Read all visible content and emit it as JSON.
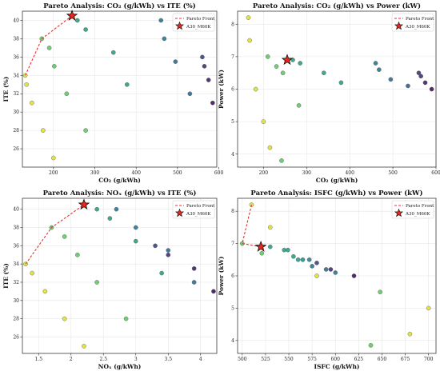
{
  "colors": {
    "front_line": "#e0342f",
    "star_fill": "#e8261c",
    "grid": "#e6e6e6",
    "palette_viridis": [
      "#440154",
      "#3b528b",
      "#21918c",
      "#5ec962",
      "#fde725"
    ]
  },
  "chart_data": [
    {
      "type": "scatter",
      "title": "Pareto Analysis: CO₂ (g/kWh) vs ITE (%)",
      "xlabel": "CO₂ (g/kWh)",
      "ylabel": "ITE (%)",
      "xlim": [
        125,
        595
      ],
      "ylim": [
        24,
        41
      ],
      "xticks": [
        200,
        300,
        400,
        500,
        600
      ],
      "yticks": [
        26,
        28,
        30,
        32,
        34,
        36,
        38,
        40
      ],
      "grid": true,
      "legend": {
        "position": "top-right",
        "entries": [
          "Pareto Front",
          "A30_M60K"
        ]
      },
      "points": [
        {
          "x": 132,
          "y": 34,
          "c": 0.95
        },
        {
          "x": 135,
          "y": 33,
          "c": 0.95
        },
        {
          "x": 148,
          "y": 31,
          "c": 0.95
        },
        {
          "x": 175,
          "y": 28,
          "c": 0.95
        },
        {
          "x": 200,
          "y": 25,
          "c": 0.95
        },
        {
          "x": 172,
          "y": 38,
          "c": 0.75
        },
        {
          "x": 190,
          "y": 37,
          "c": 0.75
        },
        {
          "x": 202,
          "y": 35,
          "c": 0.75
        },
        {
          "x": 232,
          "y": 32,
          "c": 0.75
        },
        {
          "x": 278,
          "y": 28,
          "c": 0.75
        },
        {
          "x": 258,
          "y": 40,
          "c": 0.55
        },
        {
          "x": 278,
          "y": 39,
          "c": 0.55
        },
        {
          "x": 345,
          "y": 36.5,
          "c": 0.55
        },
        {
          "x": 378,
          "y": 33,
          "c": 0.55
        },
        {
          "x": 460,
          "y": 40,
          "c": 0.4
        },
        {
          "x": 468,
          "y": 38,
          "c": 0.4
        },
        {
          "x": 495,
          "y": 35.5,
          "c": 0.35
        },
        {
          "x": 530,
          "y": 32,
          "c": 0.35
        },
        {
          "x": 560,
          "y": 36,
          "c": 0.2
        },
        {
          "x": 565,
          "y": 35,
          "c": 0.15
        },
        {
          "x": 575,
          "y": 33.5,
          "c": 0.1
        },
        {
          "x": 585,
          "y": 31,
          "c": 0.05
        }
      ],
      "front": [
        {
          "x": 132,
          "y": 34
        },
        {
          "x": 172,
          "y": 38
        },
        {
          "x": 245,
          "y": 40.5
        }
      ],
      "star": {
        "x": 245,
        "y": 40.5
      }
    },
    {
      "type": "scatter",
      "title": "Pareto Analysis: CO₂ (g/kWh) vs Power (kW)",
      "xlabel": "CO₂ (g/kWh)",
      "ylabel": "Power (kW)",
      "xlim": [
        140,
        600
      ],
      "ylim": [
        3.6,
        8.4
      ],
      "xticks": [
        200,
        300,
        400,
        500,
        600
      ],
      "yticks": [
        4,
        5,
        6,
        7,
        8
      ],
      "grid": true,
      "legend": {
        "position": "top-right",
        "entries": [
          "Pareto Front",
          "A30_M60K"
        ]
      },
      "points": [
        {
          "x": 165,
          "y": 8.2,
          "c": 0.95
        },
        {
          "x": 168,
          "y": 7.5,
          "c": 0.95
        },
        {
          "x": 182,
          "y": 6.0,
          "c": 0.95
        },
        {
          "x": 200,
          "y": 5.0,
          "c": 0.95
        },
        {
          "x": 215,
          "y": 4.2,
          "c": 0.95
        },
        {
          "x": 210,
          "y": 7.0,
          "c": 0.75
        },
        {
          "x": 230,
          "y": 6.7,
          "c": 0.75
        },
        {
          "x": 245,
          "y": 6.5,
          "c": 0.75
        },
        {
          "x": 282,
          "y": 5.5,
          "c": 0.75
        },
        {
          "x": 242,
          "y": 3.8,
          "c": 0.75
        },
        {
          "x": 268,
          "y": 6.9,
          "c": 0.55
        },
        {
          "x": 285,
          "y": 6.8,
          "c": 0.55
        },
        {
          "x": 340,
          "y": 6.5,
          "c": 0.55
        },
        {
          "x": 380,
          "y": 6.2,
          "c": 0.55
        },
        {
          "x": 460,
          "y": 6.8,
          "c": 0.4
        },
        {
          "x": 468,
          "y": 6.6,
          "c": 0.4
        },
        {
          "x": 495,
          "y": 6.3,
          "c": 0.35
        },
        {
          "x": 535,
          "y": 6.1,
          "c": 0.3
        },
        {
          "x": 560,
          "y": 6.5,
          "c": 0.15
        },
        {
          "x": 565,
          "y": 6.4,
          "c": 0.15
        },
        {
          "x": 575,
          "y": 6.2,
          "c": 0.1
        },
        {
          "x": 590,
          "y": 6.0,
          "c": 0.05
        }
      ],
      "front": [],
      "star": {
        "x": 255,
        "y": 6.9
      }
    },
    {
      "type": "scatter",
      "title": "Pareto Analysis: NOₓ (g/kWh) vs ITE (%)",
      "xlabel": "NOₓ (g/kWh)",
      "ylabel": "ITE (%)",
      "xlim": [
        1.25,
        4.25
      ],
      "ylim": [
        24.2,
        41.2
      ],
      "xticks": [
        1.5,
        2.0,
        2.5,
        3.0,
        3.5,
        4.0
      ],
      "yticks": [
        26,
        28,
        30,
        32,
        34,
        36,
        38,
        40
      ],
      "grid": true,
      "legend": {
        "position": "top-right",
        "entries": [
          "Pareto Front",
          "A30_M60K"
        ]
      },
      "points": [
        {
          "x": 1.3,
          "y": 34,
          "c": 0.95
        },
        {
          "x": 1.4,
          "y": 33,
          "c": 0.95
        },
        {
          "x": 1.6,
          "y": 31,
          "c": 0.95
        },
        {
          "x": 1.9,
          "y": 28,
          "c": 0.95
        },
        {
          "x": 2.2,
          "y": 25,
          "c": 0.95
        },
        {
          "x": 1.7,
          "y": 38,
          "c": 0.75
        },
        {
          "x": 1.9,
          "y": 37,
          "c": 0.75
        },
        {
          "x": 2.1,
          "y": 35,
          "c": 0.75
        },
        {
          "x": 2.4,
          "y": 32,
          "c": 0.75
        },
        {
          "x": 2.85,
          "y": 28,
          "c": 0.75
        },
        {
          "x": 2.4,
          "y": 40,
          "c": 0.55
        },
        {
          "x": 2.6,
          "y": 39,
          "c": 0.55
        },
        {
          "x": 3.0,
          "y": 36.5,
          "c": 0.55
        },
        {
          "x": 3.4,
          "y": 33,
          "c": 0.55
        },
        {
          "x": 2.7,
          "y": 40,
          "c": 0.4
        },
        {
          "x": 3.0,
          "y": 38,
          "c": 0.4
        },
        {
          "x": 3.5,
          "y": 35.5,
          "c": 0.35
        },
        {
          "x": 3.9,
          "y": 32,
          "c": 0.35
        },
        {
          "x": 3.3,
          "y": 36,
          "c": 0.2
        },
        {
          "x": 3.5,
          "y": 35,
          "c": 0.15
        },
        {
          "x": 3.9,
          "y": 33.5,
          "c": 0.1
        },
        {
          "x": 4.2,
          "y": 31,
          "c": 0.05
        }
      ],
      "front": [
        {
          "x": 1.3,
          "y": 34
        },
        {
          "x": 1.7,
          "y": 38
        },
        {
          "x": 2.2,
          "y": 40.5
        }
      ],
      "star": {
        "x": 2.2,
        "y": 40.5
      }
    },
    {
      "type": "scatter",
      "title": "Pareto Analysis: ISFC (g/kWh) vs Power (kW)",
      "xlabel": "ISFC (g/kWh)",
      "ylabel": "Power (kW)",
      "xlim": [
        495,
        708
      ],
      "ylim": [
        3.6,
        8.4
      ],
      "xticks": [
        500,
        525,
        550,
        575,
        600,
        625,
        650,
        675,
        700
      ],
      "yticks": [
        4,
        5,
        6,
        7,
        8
      ],
      "grid": true,
      "legend": {
        "position": "top-right",
        "entries": [
          "Pareto Front",
          "A30_M60K"
        ]
      },
      "points": [
        {
          "x": 510,
          "y": 8.2,
          "c": 0.95
        },
        {
          "x": 530,
          "y": 7.5,
          "c": 0.95
        },
        {
          "x": 580,
          "y": 6.0,
          "c": 0.95
        },
        {
          "x": 680,
          "y": 4.2,
          "c": 0.95
        },
        {
          "x": 700,
          "y": 5.0,
          "c": 0.95
        },
        {
          "x": 500,
          "y": 7.0,
          "c": 0.75
        },
        {
          "x": 521,
          "y": 6.7,
          "c": 0.75
        },
        {
          "x": 530,
          "y": 6.9,
          "c": 0.55
        },
        {
          "x": 545,
          "y": 6.8,
          "c": 0.55
        },
        {
          "x": 549,
          "y": 6.8,
          "c": 0.55
        },
        {
          "x": 555,
          "y": 6.6,
          "c": 0.55
        },
        {
          "x": 560,
          "y": 6.5,
          "c": 0.55
        },
        {
          "x": 565,
          "y": 6.5,
          "c": 0.5
        },
        {
          "x": 572,
          "y": 6.5,
          "c": 0.45
        },
        {
          "x": 575,
          "y": 6.3,
          "c": 0.4
        },
        {
          "x": 580,
          "y": 6.4,
          "c": 0.2
        },
        {
          "x": 590,
          "y": 6.2,
          "c": 0.35
        },
        {
          "x": 595,
          "y": 6.2,
          "c": 0.15
        },
        {
          "x": 600,
          "y": 6.1,
          "c": 0.4
        },
        {
          "x": 620,
          "y": 6.0,
          "c": 0.05
        },
        {
          "x": 648,
          "y": 5.5,
          "c": 0.75
        },
        {
          "x": 638,
          "y": 3.85,
          "c": 0.75
        }
      ],
      "front": [
        {
          "x": 510,
          "y": 8.2
        },
        {
          "x": 500,
          "y": 7.0
        },
        {
          "x": 520,
          "y": 6.9
        }
      ],
      "star": {
        "x": 520,
        "y": 6.9
      }
    }
  ]
}
